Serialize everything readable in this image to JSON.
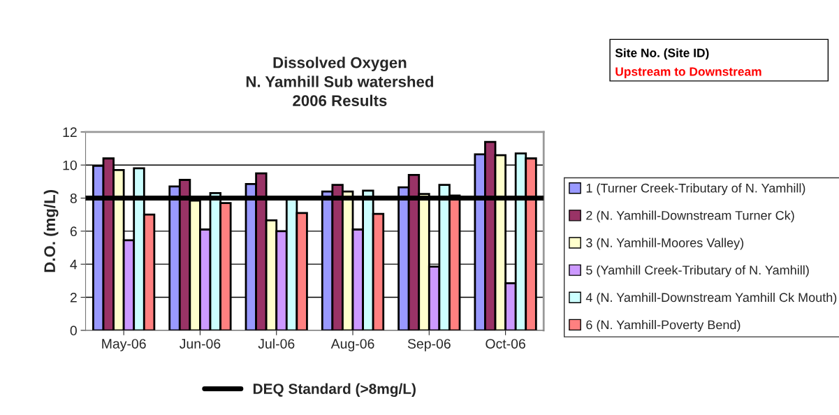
{
  "chart_data": {
    "type": "bar",
    "title": "Dissolved Oxygen\nN. Yamhill Sub watershed\n2006 Results",
    "ylabel": "D.O. (mg/L)",
    "categories": [
      "May-06",
      "Jun-06",
      "Jul-06",
      "Aug-06",
      "Sep-06",
      "Oct-06"
    ],
    "series": [
      {
        "name": "1 (Turner Creek-Tributary of N. Yamhill)",
        "color": "#9999ff",
        "values": [
          9.95,
          8.7,
          8.85,
          8.4,
          8.65,
          10.65
        ]
      },
      {
        "name": "2 (N. Yamhill-Downstream Turner Ck)",
        "color": "#993366",
        "values": [
          10.4,
          9.1,
          9.5,
          8.8,
          9.4,
          11.4
        ]
      },
      {
        "name": "3 (N. Yamhill-Moores Valley)",
        "color": "#ffffcc",
        "values": [
          9.7,
          7.85,
          6.65,
          8.4,
          8.25,
          10.6
        ]
      },
      {
        "name": "5 (Yamhill Creek-Tributary of N. Yamhill)",
        "color": "#cc99ff",
        "values": [
          5.45,
          6.1,
          6.0,
          6.1,
          3.85,
          2.85
        ]
      },
      {
        "name": "4 (N. Yamhill-Downstream Yamhill Ck Mouth)",
        "color": "#ccffff",
        "values": [
          9.8,
          8.3,
          8.0,
          8.45,
          8.8,
          10.7
        ]
      },
      {
        "name": "6 (N. Yamhill-Poverty Bend)",
        "color": "#ff8080",
        "values": [
          7.0,
          7.7,
          7.1,
          7.05,
          8.15,
          10.4
        ]
      }
    ],
    "ylim": [
      0,
      12
    ],
    "yticks": [
      0,
      2,
      4,
      6,
      8,
      10,
      12
    ],
    "grid": "y",
    "legend": "right",
    "ref_lines": [
      {
        "axis": "y",
        "value": 8,
        "label": "DEQ Standard (>8mg/L)",
        "color": "#000000",
        "line_style": "solid"
      }
    ],
    "annotations": [
      "Site No. (Site ID)",
      "Upstream to Downstream"
    ]
  }
}
